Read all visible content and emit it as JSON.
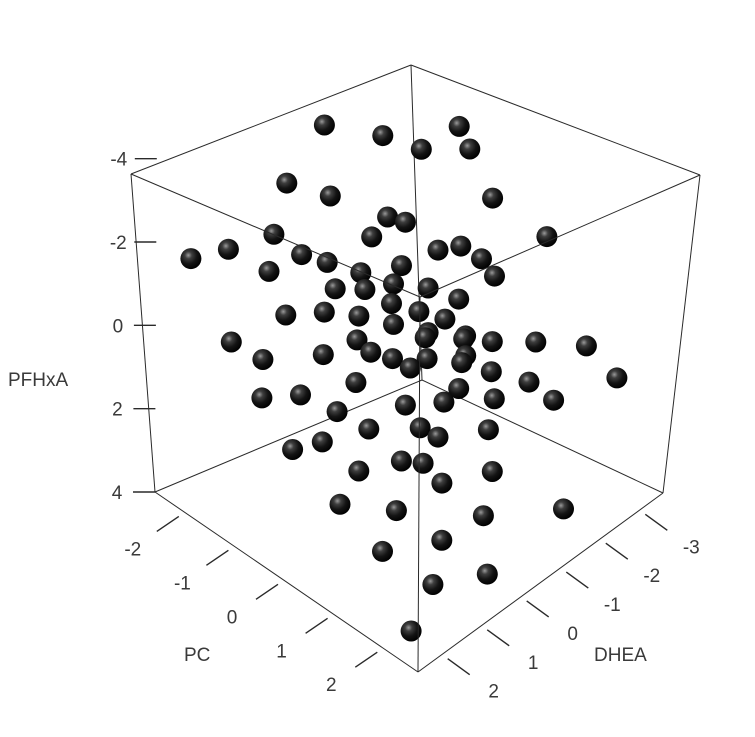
{
  "chart_data": {
    "type": "scatter",
    "subtype": "3d-scatter",
    "title": "",
    "marker": {
      "shape": "sphere",
      "color": "#111111"
    },
    "grid": false,
    "axes": {
      "PFHxA": {
        "label": "PFHxA",
        "range": [
          -5,
          4
        ],
        "ticks": [
          -4,
          -2,
          0,
          2,
          4
        ],
        "tick_labels": [
          "-4",
          "-2",
          "0",
          "2",
          "4"
        ]
      },
      "PC": {
        "label": "PC",
        "range": [
          -2.6,
          2.7
        ],
        "ticks": [
          -2,
          -1,
          0,
          1,
          2
        ],
        "tick_labels": [
          "-2",
          "-1",
          "0",
          "1",
          "2"
        ]
      },
      "DHEA": {
        "label": "DHEA",
        "range": [
          -3.6,
          2.6
        ],
        "ticks": [
          -3,
          -2,
          -1,
          0,
          1,
          2
        ],
        "tick_labels": [
          "-3",
          "-2",
          "-1",
          "0",
          "1",
          "2"
        ]
      }
    },
    "points": [
      {
        "PC": -0.8,
        "DHEA": -2.8,
        "PFHxA": -2.5
      },
      {
        "PC": -1.7,
        "DHEA": -2.0,
        "PFHxA": -2.1
      },
      {
        "PC": -0.2,
        "DHEA": -2.9,
        "PFHxA": -1.2
      },
      {
        "PC": -1.0,
        "DHEA": -1.7,
        "PFHxA": -0.8
      },
      {
        "PC": -1.2,
        "DHEA": -1.5,
        "PFHxA": -0.9
      },
      {
        "PC": 0.4,
        "DHEA": -2.2,
        "PFHxA": -0.3
      },
      {
        "PC": -0.1,
        "DHEA": -2.5,
        "PFHxA": -0.1
      },
      {
        "PC": -0.6,
        "DHEA": -1.1,
        "PFHxA": -0.5
      },
      {
        "PC": -1.1,
        "DHEA": -0.7,
        "PFHxA": -0.2
      },
      {
        "PC": 1.0,
        "DHEA": -2.5,
        "PFHxA": 1.0
      },
      {
        "PC": 2.0,
        "DHEA": -3.3,
        "PFHxA": 1.6
      },
      {
        "PC": 1.6,
        "DHEA": -2.2,
        "PFHxA": 1.7
      },
      {
        "PC": 0.2,
        "DHEA": -1.2,
        "PFHxA": 0.2
      },
      {
        "PC": 1.5,
        "DHEA": -1.7,
        "PFHxA": 1.0
      },
      {
        "PC": 0.9,
        "DHEA": -1.5,
        "PFHxA": 1.1
      },
      {
        "PC": 0.5,
        "DHEA": -1.3,
        "PFHxA": 0.5
      },
      {
        "PC": 0.7,
        "DHEA": -1.1,
        "PFHxA": 0.6
      },
      {
        "PC": 0.3,
        "DHEA": -1.6,
        "PFHxA": 0.8
      },
      {
        "PC": 0.0,
        "DHEA": -1.8,
        "PFHxA": 0.3
      },
      {
        "PC": -0.3,
        "DHEA": -1.4,
        "PFHxA": 0.0
      },
      {
        "PC": -0.5,
        "DHEA": -1.9,
        "PFHxA": -0.4
      },
      {
        "PC": 0.6,
        "DHEA": -1.9,
        "PFHxA": 0.9
      },
      {
        "PC": 1.2,
        "DHEA": -1.2,
        "PFHxA": 1.3
      },
      {
        "PC": 0.8,
        "DHEA": -0.8,
        "PFHxA": 1.1
      },
      {
        "PC": 0.1,
        "DHEA": -0.9,
        "PFHxA": 0.4
      },
      {
        "PC": -0.4,
        "DHEA": -0.6,
        "PFHxA": -0.1
      },
      {
        "PC": -0.7,
        "DHEA": -0.3,
        "PFHxA": -0.4
      },
      {
        "PC": -1.3,
        "DHEA": -0.1,
        "PFHxA": -0.7
      },
      {
        "PC": -0.9,
        "DHEA": 0.2,
        "PFHxA": -0.6
      },
      {
        "PC": -0.2,
        "DHEA": -0.4,
        "PFHxA": 0.1
      },
      {
        "PC": 0.4,
        "DHEA": -0.5,
        "PFHxA": 0.5
      },
      {
        "PC": 0.9,
        "DHEA": -0.3,
        "PFHxA": 1.0
      },
      {
        "PC": 1.4,
        "DHEA": -0.8,
        "PFHxA": 1.6
      },
      {
        "PC": 1.8,
        "DHEA": -0.4,
        "PFHxA": 2.0
      },
      {
        "PC": 1.1,
        "DHEA": 0.1,
        "PFHxA": 1.4
      },
      {
        "PC": 0.6,
        "DHEA": 0.3,
        "PFHxA": 0.9
      },
      {
        "PC": 0.1,
        "DHEA": 0.0,
        "PFHxA": 0.4
      },
      {
        "PC": -0.3,
        "DHEA": 0.4,
        "PFHxA": 0.0
      },
      {
        "PC": -0.8,
        "DHEA": 0.6,
        "PFHxA": -0.4
      },
      {
        "PC": -1.5,
        "DHEA": 0.3,
        "PFHxA": -1.0
      },
      {
        "PC": -1.9,
        "DHEA": 0.5,
        "PFHxA": -1.3
      },
      {
        "PC": -1.6,
        "DHEA": 1.0,
        "PFHxA": -1.0
      },
      {
        "PC": -1.1,
        "DHEA": 1.2,
        "PFHxA": -0.5
      },
      {
        "PC": -0.5,
        "DHEA": 1.0,
        "PFHxA": 0.1
      },
      {
        "PC": 0.0,
        "DHEA": 0.8,
        "PFHxA": 0.5
      },
      {
        "PC": 0.5,
        "DHEA": 1.1,
        "PFHxA": 1.0
      },
      {
        "PC": 1.0,
        "DHEA": 0.9,
        "PFHxA": 1.5
      },
      {
        "PC": 1.5,
        "DHEA": 0.5,
        "PFHxA": 1.9
      },
      {
        "PC": 2.1,
        "DHEA": 0.2,
        "PFHxA": 2.4
      },
      {
        "PC": 1.9,
        "DHEA": 1.0,
        "PFHxA": 2.6
      },
      {
        "PC": 1.3,
        "DHEA": 1.4,
        "PFHxA": 2.1
      },
      {
        "PC": 0.7,
        "DHEA": 1.6,
        "PFHxA": 1.5
      },
      {
        "PC": 0.2,
        "DHEA": 1.9,
        "PFHxA": 1.0
      },
      {
        "PC": -0.4,
        "DHEA": 1.7,
        "PFHxA": 0.5
      },
      {
        "PC": -1.0,
        "DHEA": 1.9,
        "PFHxA": 0.0
      },
      {
        "PC": -1.4,
        "DHEA": 2.2,
        "PFHxA": -0.3
      },
      {
        "PC": -0.7,
        "DHEA": 2.3,
        "PFHxA": 0.4
      },
      {
        "PC": 0.0,
        "DHEA": 2.4,
        "PFHxA": 1.0
      },
      {
        "PC": 0.8,
        "DHEA": 2.2,
        "PFHxA": 1.8
      },
      {
        "PC": 1.5,
        "DHEA": 2.0,
        "PFHxA": 2.5
      },
      {
        "PC": 2.2,
        "DHEA": 1.6,
        "PFHxA": 3.0
      },
      {
        "PC": 2.4,
        "DHEA": 2.4,
        "PFHxA": 3.4
      },
      {
        "PC": -0.6,
        "DHEA": -0.9,
        "PFHxA": -0.2
      },
      {
        "PC": 0.3,
        "DHEA": -0.2,
        "PFHxA": 0.6
      },
      {
        "PC": -0.1,
        "DHEA": 0.3,
        "PFHxA": 0.2
      },
      {
        "PC": 0.7,
        "DHEA": -1.0,
        "PFHxA": 0.7
      },
      {
        "PC": -1.2,
        "DHEA": -1.1,
        "PFHxA": -0.7
      },
      {
        "PC": -1.8,
        "DHEA": -0.8,
        "PFHxA": -1.4
      },
      {
        "PC": -2.2,
        "DHEA": -0.2,
        "PFHxA": -1.8
      },
      {
        "PC": -2.4,
        "DHEA": -1.4,
        "PFHxA": -2.2
      },
      {
        "PC": -1.4,
        "DHEA": -2.6,
        "PFHxA": -1.6
      },
      {
        "PC": -0.9,
        "DHEA": -3.2,
        "PFHxA": -1.6
      },
      {
        "PC": 0.5,
        "DHEA": -3.4,
        "PFHxA": -0.5
      },
      {
        "PC": 1.7,
        "DHEA": -2.9,
        "PFHxA": 0.8
      },
      {
        "PC": 1.2,
        "DHEA": 0.6,
        "PFHxA": 1.6
      },
      {
        "PC": -2.1,
        "DHEA": 1.4,
        "PFHxA": -1.4
      },
      {
        "PC": -2.3,
        "DHEA": 2.1,
        "PFHxA": -1.5
      },
      {
        "PC": 2.5,
        "DHEA": 0.6,
        "PFHxA": 3.2
      },
      {
        "PC": 2.6,
        "DHEA": -1.2,
        "PFHxA": 2.8
      },
      {
        "PC": -0.2,
        "DHEA": -2.1,
        "PFHxA": -0.6
      },
      {
        "PC": 0.9,
        "DHEA": 0.3,
        "PFHxA": 1.2
      },
      {
        "PC": -0.5,
        "DHEA": 0.1,
        "PFHxA": -0.2
      },
      {
        "PC": 0.2,
        "DHEA": -0.7,
        "PFHxA": 0.3
      },
      {
        "PC": 0.1,
        "DHEA": 1.4,
        "PFHxA": 0.7
      },
      {
        "PC": 2.6,
        "DHEA": 2.5,
        "PFHxA": -4.5
      }
    ]
  }
}
